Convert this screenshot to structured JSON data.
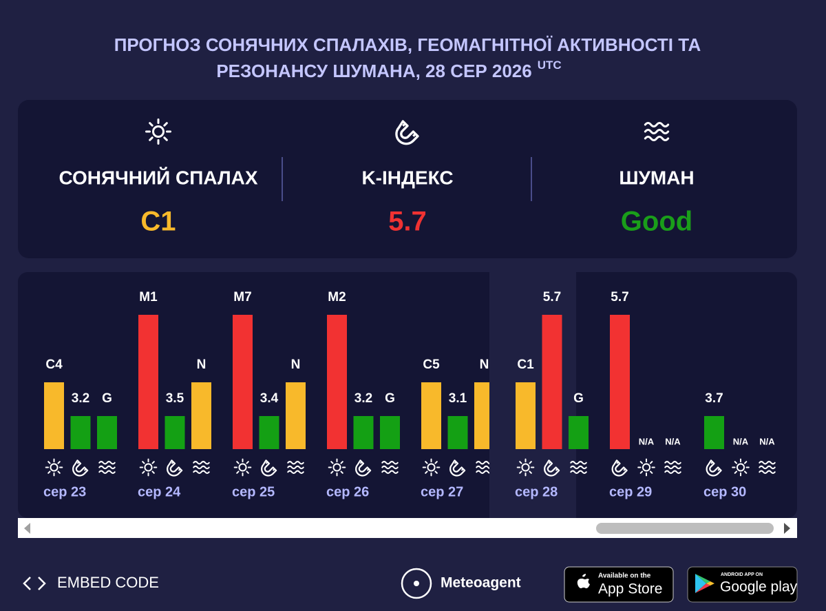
{
  "header": {
    "title_lines": [
      "ПРОГНОЗ СОНЯЧНИХ СПАЛАХІВ, ГЕОМАГНІТНОЇ АКТИВНОСТІ ТА",
      "РЕЗОНАНСУ ШУМАНА, 28 СЕР 2026"
    ],
    "title_sup": "UTC"
  },
  "summary": [
    {
      "icon": "sun",
      "label": "СОНЯЧНИЙ СПАЛАХ",
      "value": "C1",
      "color": "#f8b92b"
    },
    {
      "icon": "magnet",
      "label": "K-ІНДЕКС",
      "value": "5.7",
      "color": "#f03232"
    },
    {
      "icon": "waves",
      "label": "ШУМАН",
      "value": "Good",
      "color": "#1a9e1a"
    }
  ],
  "days": [
    {
      "date": "сер 23",
      "bars": [
        {
          "icon": "sun",
          "label": "C4",
          "color": "#f8b92b"
        },
        {
          "icon": "magnet",
          "label": "3.2",
          "color": "#14a014"
        },
        {
          "icon": "waves",
          "label": "G",
          "color": "#14a014"
        }
      ]
    },
    {
      "date": "сер 24",
      "bars": [
        {
          "icon": "sun",
          "label": "M1",
          "color": "#f23232"
        },
        {
          "icon": "magnet",
          "label": "3.5",
          "color": "#14a014"
        },
        {
          "icon": "waves",
          "label": "N",
          "color": "#f8b92b"
        }
      ]
    },
    {
      "date": "сер 25",
      "bars": [
        {
          "icon": "sun",
          "label": "M7",
          "color": "#f23232"
        },
        {
          "icon": "magnet",
          "label": "3.4",
          "color": "#14a014"
        },
        {
          "icon": "waves",
          "label": "N",
          "color": "#f8b92b"
        }
      ]
    },
    {
      "date": "сер 26",
      "bars": [
        {
          "icon": "sun",
          "label": "M2",
          "color": "#f23232"
        },
        {
          "icon": "magnet",
          "label": "3.2",
          "color": "#14a014"
        },
        {
          "icon": "waves",
          "label": "G",
          "color": "#14a014"
        }
      ]
    },
    {
      "date": "сер 27",
      "bars": [
        {
          "icon": "sun",
          "label": "C5",
          "color": "#f8b92b"
        },
        {
          "icon": "magnet",
          "label": "3.1",
          "color": "#14a014"
        },
        {
          "icon": "waves",
          "label": "N",
          "color": "#f8b92b"
        }
      ]
    },
    {
      "date": "сер 28",
      "today": true,
      "bars": [
        {
          "icon": "sun",
          "label": "C1",
          "color": "#f8b92b"
        },
        {
          "icon": "magnet",
          "label": "5.7",
          "color": "#f23232"
        },
        {
          "icon": "waves",
          "label": "G",
          "color": "#14a014"
        }
      ]
    },
    {
      "date": "сер 29",
      "bars": [
        {
          "icon": "magnet",
          "label": "5.7",
          "color": "#f23232"
        },
        {
          "icon": "sun",
          "label": "N/A"
        },
        {
          "icon": "waves",
          "label": "N/A"
        }
      ]
    },
    {
      "date": "сер 30",
      "bars": [
        {
          "icon": "magnet",
          "label": "3.7",
          "color": "#14a014"
        },
        {
          "icon": "sun",
          "label": "N/A"
        },
        {
          "icon": "waves",
          "label": "N/A"
        }
      ]
    }
  ],
  "footer": {
    "embed": "EMBED CODE",
    "brand": "Meteoagent",
    "appstore_small": "Available on the",
    "appstore": "App Store",
    "googleplay_small": "ANDROID APP ON",
    "googleplay": "Google play"
  }
}
